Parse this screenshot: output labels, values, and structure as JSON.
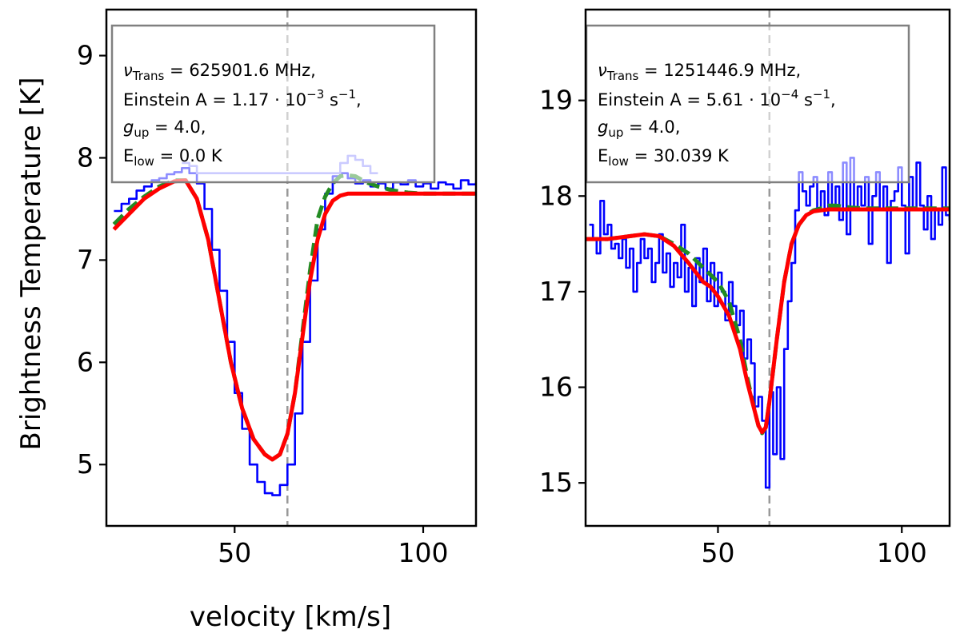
{
  "chart_data": [
    {
      "type": "line",
      "title": "",
      "xlabel": "velocity [km/s]",
      "ylabel": "Brightness Temperature [K]",
      "xlim": [
        16,
        114
      ],
      "ylim": [
        4.4,
        9.45
      ],
      "xticks": [
        50,
        100
      ],
      "yticks": [
        5,
        6,
        7,
        8,
        9
      ],
      "vline": 64,
      "annotation": {
        "line1": {
          "nu": "ν",
          "nu_sub": "Trans",
          "text": " = 625901.6 MHz,"
        },
        "line2": {
          "pre": "Einstein A = 1.17 · 10",
          "sup1": "−3",
          "mid": " s",
          "sup2": "−1",
          "post": ","
        },
        "line3": {
          "g": "g",
          "g_sub": "up",
          "text": " = 4.0,"
        },
        "line4": {
          "e": "E",
          "e_sub": "low",
          "text": " = 0.0 K"
        }
      },
      "series": [
        {
          "name": "observed",
          "style": "step",
          "color": "#0000ff",
          "x": [
            18,
            20,
            22,
            24,
            26,
            28,
            30,
            32,
            34,
            36,
            38,
            40,
            42,
            44,
            46,
            48,
            50,
            52,
            54,
            56,
            58,
            60,
            62,
            64,
            66,
            68,
            70,
            72,
            74,
            76,
            78,
            80,
            82,
            84,
            86,
            88,
            90,
            92,
            94,
            96,
            98,
            100,
            102,
            104,
            106,
            108,
            110,
            112,
            114
          ],
          "y": [
            7.48,
            7.55,
            7.6,
            7.68,
            7.72,
            7.78,
            7.8,
            7.84,
            7.86,
            7.9,
            7.85,
            7.75,
            7.5,
            7.1,
            6.7,
            6.2,
            5.7,
            5.35,
            5.0,
            4.83,
            4.72,
            4.7,
            4.8,
            5.0,
            5.5,
            6.2,
            6.8,
            7.3,
            7.65,
            7.82,
            7.85,
            7.8,
            7.75,
            7.78,
            7.72,
            7.75,
            7.7,
            7.76,
            7.74,
            7.78,
            7.72,
            7.75,
            7.7,
            7.76,
            7.74,
            7.7,
            7.78,
            7.74,
            7.76
          ]
        },
        {
          "name": "observed-faint",
          "style": "step",
          "color": "#8c8cff",
          "x": [
            36,
            38,
            40,
            78,
            80,
            82,
            84,
            86
          ],
          "y": [
            7.95,
            7.92,
            7.85,
            7.95,
            8.02,
            7.98,
            7.92,
            7.85
          ]
        },
        {
          "name": "model-green",
          "style": "dashed",
          "color": "#228b22",
          "x": [
            18,
            22,
            26,
            30,
            34,
            37,
            40,
            43,
            46,
            49,
            52,
            55,
            58,
            60,
            62,
            64,
            66,
            68,
            70,
            72,
            74,
            76,
            78,
            80,
            82,
            85,
            88,
            92,
            96,
            100,
            105,
            110,
            114
          ],
          "y": [
            7.35,
            7.5,
            7.62,
            7.72,
            7.78,
            7.78,
            7.6,
            7.2,
            6.6,
            6.0,
            5.55,
            5.25,
            5.1,
            5.05,
            5.1,
            5.3,
            5.7,
            6.3,
            6.9,
            7.4,
            7.62,
            7.75,
            7.82,
            7.83,
            7.82,
            7.76,
            7.72,
            7.68,
            7.66,
            7.65,
            7.65,
            7.65,
            7.65
          ]
        },
        {
          "name": "model-red",
          "style": "solid",
          "color": "#ff0000",
          "x": [
            18,
            22,
            26,
            30,
            34,
            37,
            40,
            43,
            46,
            49,
            52,
            55,
            58,
            60,
            62,
            64,
            66,
            68,
            70,
            72,
            74,
            76,
            78,
            80,
            84,
            90,
            100,
            110,
            114
          ],
          "y": [
            7.3,
            7.45,
            7.6,
            7.7,
            7.77,
            7.78,
            7.6,
            7.2,
            6.6,
            6.0,
            5.55,
            5.25,
            5.1,
            5.05,
            5.1,
            5.3,
            5.7,
            6.25,
            6.8,
            7.2,
            7.45,
            7.58,
            7.63,
            7.65,
            7.65,
            7.65,
            7.65,
            7.65,
            7.65
          ]
        }
      ]
    },
    {
      "type": "line",
      "title": "",
      "xlabel": "",
      "ylabel": "",
      "xlim": [
        14,
        113
      ],
      "ylim": [
        14.55,
        19.95
      ],
      "xticks": [
        50,
        100
      ],
      "yticks": [
        15,
        16,
        17,
        18,
        19
      ],
      "vline": 64,
      "annotation": {
        "line1": {
          "nu": "ν",
          "nu_sub": "Trans",
          "text": " = 1251446.9 MHz,"
        },
        "line2": {
          "pre": "Einstein A = 5.61 · 10",
          "sup1": "−4",
          "mid": " s",
          "sup2": "−1",
          "post": ","
        },
        "line3": {
          "g": "g",
          "g_sub": "up",
          "text": " = 4.0,"
        },
        "line4": {
          "e": "E",
          "e_sub": "low",
          "text": " = 30.039 K"
        }
      },
      "series": [
        {
          "name": "observed",
          "style": "step",
          "color": "#0000ff",
          "x": [
            15,
            16,
            17,
            18,
            19,
            20,
            21,
            22,
            23,
            24,
            25,
            26,
            27,
            28,
            29,
            30,
            31,
            32,
            33,
            34,
            35,
            36,
            37,
            38,
            39,
            40,
            41,
            42,
            43,
            44,
            45,
            46,
            47,
            48,
            49,
            50,
            51,
            52,
            53,
            54,
            55,
            56,
            57,
            58,
            59,
            60,
            61,
            62,
            63,
            64,
            65,
            66,
            67,
            68,
            69,
            70,
            71,
            72,
            73,
            74,
            75,
            76,
            77,
            78,
            79,
            80,
            81,
            82,
            83,
            84,
            85,
            86,
            87,
            88,
            89,
            90,
            91,
            92,
            93,
            94,
            95,
            96,
            97,
            98,
            99,
            100,
            101,
            102,
            103,
            104,
            105,
            106,
            107,
            108,
            109,
            110,
            111,
            112,
            113
          ],
          "y": [
            17.7,
            17.55,
            17.4,
            17.95,
            17.6,
            17.7,
            17.45,
            17.5,
            17.35,
            17.55,
            17.25,
            17.45,
            17.0,
            17.3,
            17.55,
            17.35,
            17.45,
            17.1,
            17.3,
            17.6,
            17.2,
            17.4,
            17.05,
            17.3,
            17.15,
            17.7,
            17.0,
            17.25,
            16.85,
            17.35,
            17.1,
            17.45,
            16.9,
            17.3,
            16.85,
            17.2,
            17.0,
            16.7,
            17.1,
            16.85,
            16.65,
            16.8,
            16.3,
            16.5,
            16.25,
            15.8,
            15.9,
            15.65,
            14.95,
            15.95,
            15.3,
            16.0,
            15.25,
            16.4,
            16.9,
            17.3,
            17.85,
            18.25,
            18.05,
            17.9,
            18.1,
            18.2,
            17.85,
            18.05,
            17.8,
            18.25,
            17.9,
            18.1,
            17.75,
            18.35,
            17.6,
            18.4,
            17.85,
            18.1,
            17.9,
            18.2,
            17.5,
            18.0,
            18.25,
            17.85,
            18.1,
            17.3,
            17.95,
            18.05,
            18.3,
            17.9,
            17.4,
            18.2,
            17.85,
            18.35,
            17.9,
            17.65,
            18.0,
            17.55,
            17.85,
            17.7,
            18.3,
            17.8,
            17.75
          ]
        },
        {
          "name": "model-green",
          "style": "dashed",
          "color": "#228b22",
          "x": [
            14,
            20,
            26,
            30,
            34,
            38,
            42,
            46,
            50,
            53,
            56,
            58,
            60,
            61,
            62,
            63,
            64,
            66,
            68,
            70,
            72,
            74,
            76,
            78,
            80,
            82,
            86,
            90,
            96,
            100,
            106,
            113
          ],
          "y": [
            17.55,
            17.55,
            17.58,
            17.6,
            17.58,
            17.5,
            17.4,
            17.25,
            17.1,
            16.9,
            16.5,
            16.1,
            15.75,
            15.6,
            15.52,
            15.58,
            15.85,
            16.5,
            17.1,
            17.5,
            17.7,
            17.8,
            17.85,
            17.87,
            17.9,
            17.9,
            17.88,
            17.87,
            17.87,
            17.87,
            17.87,
            17.87
          ]
        },
        {
          "name": "model-red",
          "style": "solid",
          "color": "#ff0000",
          "x": [
            14,
            20,
            26,
            30,
            34,
            38,
            42,
            46,
            48,
            50,
            53,
            56,
            58,
            60,
            61,
            62,
            63,
            64,
            66,
            68,
            70,
            72,
            74,
            76,
            78,
            80,
            84,
            90,
            100,
            113
          ],
          "y": [
            17.55,
            17.55,
            17.58,
            17.6,
            17.58,
            17.48,
            17.3,
            17.1,
            17.05,
            16.95,
            16.75,
            16.4,
            16.05,
            15.75,
            15.6,
            15.53,
            15.58,
            15.85,
            16.5,
            17.1,
            17.5,
            17.7,
            17.8,
            17.84,
            17.85,
            17.86,
            17.86,
            17.86,
            17.86,
            17.86
          ]
        }
      ]
    }
  ]
}
